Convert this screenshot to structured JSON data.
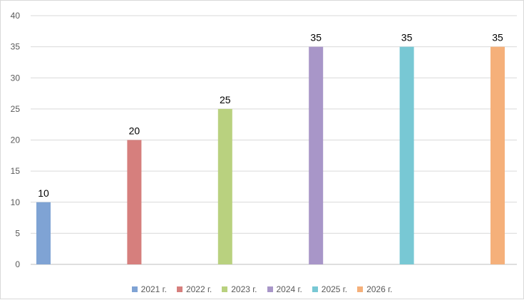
{
  "chart_data": {
    "type": "bar",
    "title": "",
    "xlabel": "",
    "ylabel": "",
    "ylim": [
      0,
      40
    ],
    "y_ticks": [
      "0",
      "5",
      "10",
      "15",
      "20",
      "25",
      "30",
      "35",
      "40"
    ],
    "grid": true,
    "legend_position": "bottom",
    "series": [
      {
        "name": "2021 г.",
        "value": 10,
        "label": "10",
        "color": "#7fa3d4"
      },
      {
        "name": "2022 г.",
        "value": 20,
        "label": "20",
        "color": "#d67f7d"
      },
      {
        "name": "2023 г.",
        "value": 25,
        "label": "25",
        "color": "#b9d17f"
      },
      {
        "name": "2024 г.",
        "value": 35,
        "label": "35",
        "color": "#a896c8"
      },
      {
        "name": "2025 г.",
        "value": 35,
        "label": "35",
        "color": "#78c8d4"
      },
      {
        "name": "2026 г.",
        "value": 35,
        "label": "35",
        "color": "#f5b07a"
      }
    ]
  }
}
